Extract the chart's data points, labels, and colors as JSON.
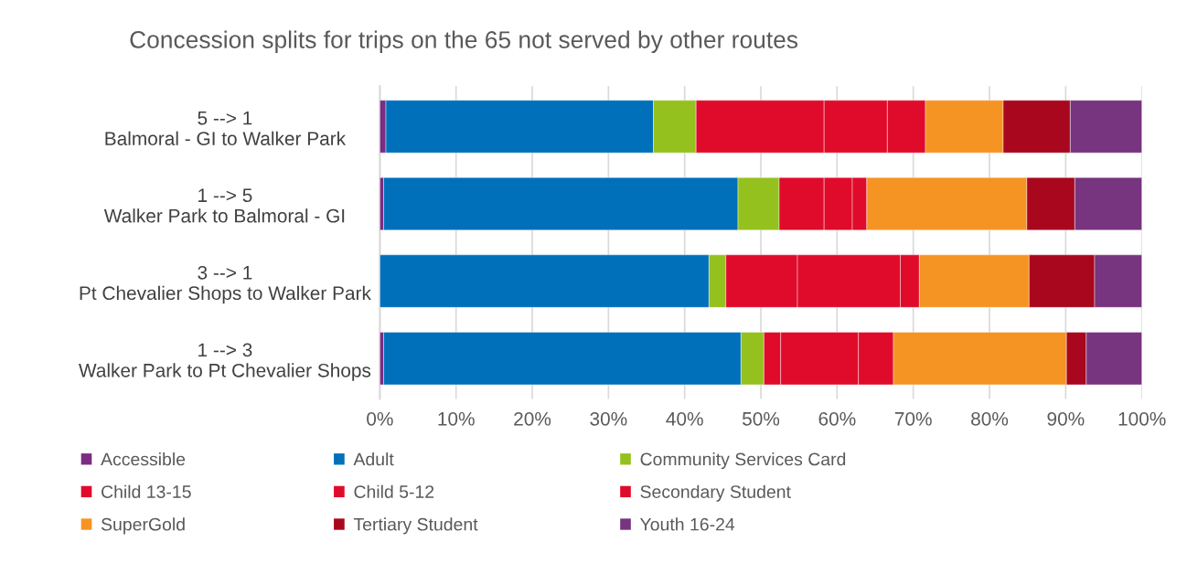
{
  "chart_data": {
    "type": "bar",
    "orientation": "horizontal",
    "stacked": true,
    "title": "Concession splits for trips on the 65 not served by other routes",
    "categories": [
      "5 --> 1\nBalmoral - GI to Walker Park",
      "1 --> 5\nWalker Park to Balmoral - GI",
      "3 --> 1\nPt Chevalier Shops to Walker Park",
      "1 --> 3\nWalker Park to Pt Chevalier Shops"
    ],
    "series": [
      {
        "name": "Accessible",
        "color": "#7b2c83",
        "values": [
          0.8,
          0.5,
          0,
          0.5
        ]
      },
      {
        "name": "Adult",
        "color": "#0070bb",
        "values": [
          35.1,
          46.5,
          43.2,
          46.9
        ]
      },
      {
        "name": "Community Services Card",
        "color": "#95c11f",
        "values": [
          5.6,
          5.4,
          2.2,
          3.0
        ]
      },
      {
        "name": "Child 13-15",
        "color": "#e00b2a",
        "values": [
          16.8,
          5.9,
          9.4,
          2.2
        ]
      },
      {
        "name": "Child 5-12",
        "color": "#e00b2a",
        "values": [
          8.3,
          3.7,
          13.5,
          10.2
        ]
      },
      {
        "name": "Secondary Student",
        "color": "#e00b2a",
        "values": [
          5.0,
          1.9,
          2.5,
          4.6
        ]
      },
      {
        "name": "SuperGold",
        "color": "#f59423",
        "values": [
          10.2,
          21.0,
          14.4,
          22.7
        ]
      },
      {
        "name": "Tertiary Student",
        "color": "#a8071e",
        "values": [
          8.8,
          6.3,
          8.6,
          2.6
        ]
      },
      {
        "name": "Youth 16-24",
        "color": "#77347f",
        "values": [
          9.4,
          8.8,
          6.2,
          7.3
        ]
      }
    ],
    "xlim": [
      0,
      100
    ],
    "xticks": [
      {
        "value": 0,
        "label": "0%"
      },
      {
        "value": 10,
        "label": "10%"
      },
      {
        "value": 20,
        "label": "20%"
      },
      {
        "value": 30,
        "label": "30%"
      },
      {
        "value": 40,
        "label": "40%"
      },
      {
        "value": 50,
        "label": "50%"
      },
      {
        "value": 60,
        "label": "60%"
      },
      {
        "value": 70,
        "label": "70%"
      },
      {
        "value": 80,
        "label": "80%"
      },
      {
        "value": 90,
        "label": "90%"
      },
      {
        "value": 100,
        "label": "100%"
      }
    ],
    "grid": "x",
    "legend": "bottom"
  }
}
